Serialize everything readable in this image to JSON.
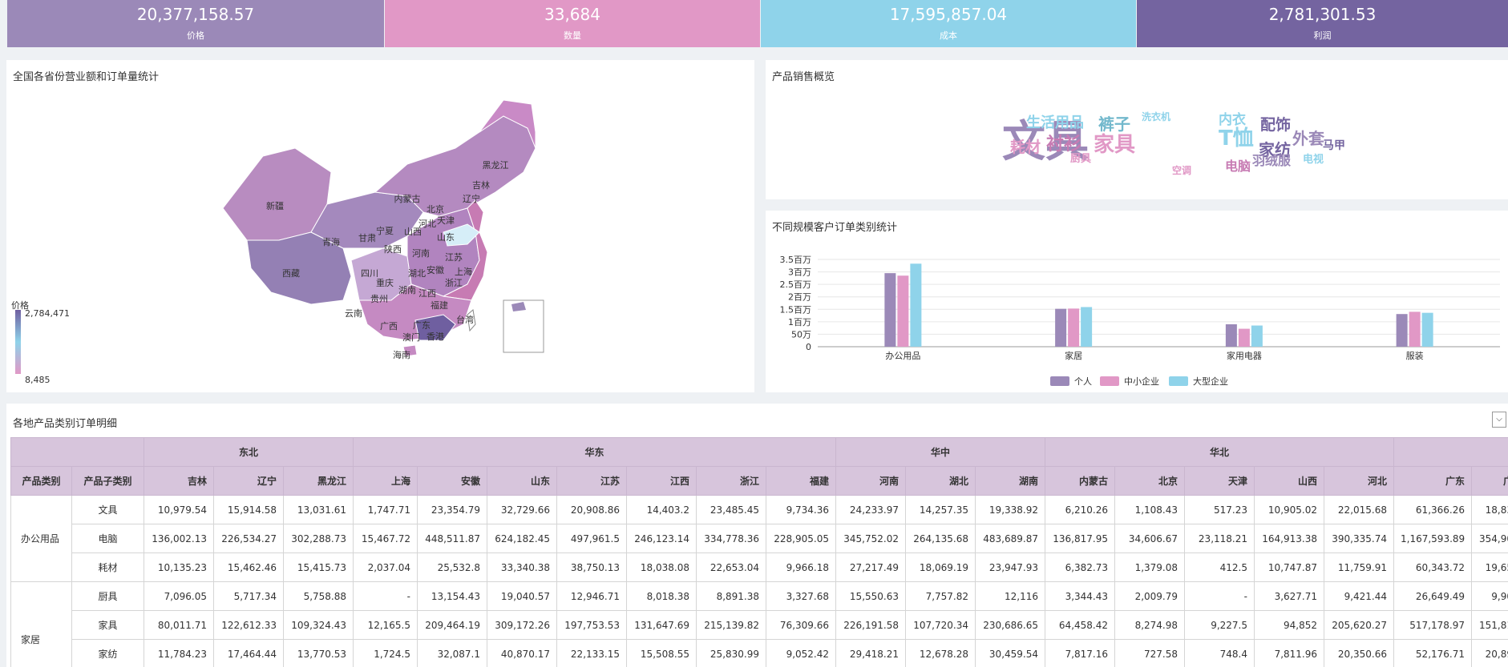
{
  "kpis": [
    {
      "value": "20,377,158.57",
      "label": "价格",
      "color": "#9b89b8"
    },
    {
      "value": "33,684",
      "label": "数量",
      "color": "#e198c6"
    },
    {
      "value": "17,595,857.04",
      "label": "成本",
      "color": "#8fd3ea"
    },
    {
      "value": "2,781,301.53",
      "label": "利润",
      "color": "#7464a0"
    }
  ],
  "map": {
    "title": "全国各省份营业额和订单量统计",
    "legend_title": "价格",
    "legend_max": "2,784,471",
    "legend_min": "8,485",
    "labels": [
      "黑龙江",
      "吉林",
      "辽宁",
      "内蒙古",
      "北京",
      "天津",
      "河北",
      "新疆",
      "青海",
      "甘肃",
      "宁夏",
      "山西",
      "山东",
      "陕西",
      "河南",
      "江苏",
      "西藏",
      "四川",
      "重庆",
      "湖北",
      "安徽",
      "上海",
      "浙江",
      "湖南",
      "江西",
      "贵州",
      "福建",
      "云南",
      "广西",
      "广东",
      "台湾",
      "香港",
      "澳门",
      "海南"
    ]
  },
  "wordcloud": {
    "title": "产品销售概览",
    "words": [
      {
        "text": "文具",
        "color": "#9b89b8"
      },
      {
        "text": "T恤",
        "color": "#8fd3ea"
      },
      {
        "text": "家具",
        "color": "#e198c6"
      },
      {
        "text": "家纺",
        "color": "#7464a0"
      },
      {
        "text": "衬衫",
        "color": "#c77bb3"
      },
      {
        "text": "裤子",
        "color": "#72b8cc"
      },
      {
        "text": "生活用品",
        "color": "#8fd3ea"
      },
      {
        "text": "耗材",
        "color": "#e198c6"
      },
      {
        "text": "配饰",
        "color": "#7464a0"
      },
      {
        "text": "外套",
        "color": "#9b89b8"
      },
      {
        "text": "内衣",
        "color": "#8fd3ea"
      },
      {
        "text": "羽绒服",
        "color": "#9b89b8"
      },
      {
        "text": "电脑",
        "color": "#c77bb3"
      },
      {
        "text": "马甲",
        "color": "#7464a0"
      },
      {
        "text": "电视",
        "color": "#8fd3ea"
      },
      {
        "text": "洗衣机",
        "color": "#8fd3ea"
      },
      {
        "text": "厨具",
        "color": "#e198c6"
      },
      {
        "text": "空调",
        "color": "#e198c6"
      }
    ]
  },
  "chart_data": {
    "type": "bar",
    "title": "不同规模客户订单类别统计",
    "categories": [
      "办公用品",
      "家居",
      "家用电器",
      "服装"
    ],
    "series": [
      {
        "name": "个人",
        "color": "#9b89b8",
        "values": [
          2950000,
          1520000,
          900000,
          1310000
        ]
      },
      {
        "name": "中小企业",
        "color": "#e198c6",
        "values": [
          2850000,
          1530000,
          720000,
          1400000
        ]
      },
      {
        "name": "大型企业",
        "color": "#8fd3ea",
        "values": [
          3330000,
          1590000,
          850000,
          1360000
        ]
      }
    ],
    "ylim": [
      0,
      3500000
    ],
    "ytick_labels": [
      "0",
      "50万",
      "1百万",
      "1.5百万",
      "2百万",
      "2.5百万",
      "3百万",
      "3.5百万"
    ],
    "legend_position": "bottom"
  },
  "table": {
    "title": "各地产品类别订单明细",
    "regions": [
      {
        "name": "东北",
        "span": 3
      },
      {
        "name": "华东",
        "span": 7
      },
      {
        "name": "华中",
        "span": 3
      },
      {
        "name": "华北",
        "span": 5
      },
      {
        "name": "",
        "span": 2
      }
    ],
    "col_headers": [
      "产品类别",
      "产品子类别"
    ],
    "provinces": [
      "吉林",
      "辽宁",
      "黑龙江",
      "上海",
      "安徽",
      "山东",
      "江苏",
      "江西",
      "浙江",
      "福建",
      "河南",
      "湖北",
      "湖南",
      "内蒙古",
      "北京",
      "天津",
      "山西",
      "河北",
      "广东",
      "广"
    ],
    "groups": [
      {
        "category": "办公用品",
        "rows": [
          {
            "sub": "文具",
            "values": [
              "10,979.54",
              "15,914.58",
              "13,031.61",
              "1,747.71",
              "23,354.79",
              "32,729.66",
              "20,908.86",
              "14,403.2",
              "23,485.45",
              "9,734.36",
              "24,233.97",
              "14,257.35",
              "19,338.92",
              "6,210.26",
              "1,108.43",
              "517.23",
              "10,905.02",
              "22,015.68",
              "61,366.26",
              "18,83"
            ]
          },
          {
            "sub": "电脑",
            "values": [
              "136,002.13",
              "226,534.27",
              "302,288.73",
              "15,467.72",
              "448,511.87",
              "624,182.45",
              "497,961.5",
              "246,123.14",
              "334,778.36",
              "228,905.05",
              "345,752.02",
              "264,135.68",
              "483,689.87",
              "136,817.95",
              "34,606.67",
              "23,118.21",
              "164,913.38",
              "390,335.74",
              "1,167,593.89",
              "354,90"
            ]
          },
          {
            "sub": "耗材",
            "values": [
              "10,135.23",
              "15,462.46",
              "15,415.73",
              "2,037.04",
              "25,532.8",
              "33,340.38",
              "38,750.13",
              "18,038.08",
              "22,653.04",
              "9,966.18",
              "27,217.49",
              "18,069.19",
              "23,947.93",
              "6,382.73",
              "1,379.08",
              "412.5",
              "10,747.87",
              "11,759.91",
              "60,343.72",
              "19,65"
            ]
          }
        ]
      },
      {
        "category": "家居",
        "rows": [
          {
            "sub": "厨具",
            "values": [
              "7,096.05",
              "5,717.34",
              "5,758.88",
              "-",
              "13,154.43",
              "19,040.57",
              "12,946.71",
              "8,018.38",
              "8,891.38",
              "3,327.68",
              "15,550.63",
              "7,757.82",
              "12,116",
              "3,344.43",
              "2,009.79",
              "-",
              "3,627.71",
              "9,421.44",
              "26,649.49",
              "9,90"
            ]
          },
          {
            "sub": "家具",
            "values": [
              "80,011.71",
              "122,612.33",
              "109,324.43",
              "12,165.5",
              "209,464.19",
              "309,172.26",
              "197,753.53",
              "131,647.69",
              "215,139.82",
              "76,309.66",
              "226,191.58",
              "107,720.34",
              "230,686.65",
              "64,458.42",
              "8,274.98",
              "9,227.5",
              "94,852",
              "205,620.27",
              "517,178.97",
              "151,81"
            ]
          },
          {
            "sub": "家纺",
            "values": [
              "11,784.23",
              "17,464.44",
              "13,770.53",
              "1,724.5",
              "32,087.1",
              "40,870.17",
              "22,133.15",
              "15,508.55",
              "25,830.99",
              "9,052.42",
              "29,418.21",
              "12,678.28",
              "30,459.54",
              "7,817.16",
              "727.58",
              "748.4",
              "7,811.96",
              "20,350.66",
              "52,176.71",
              "20,89"
            ]
          },
          {
            "sub": "",
            "values": [
              "",
              "",
              "",
              "",
              "",
              "",
              "",
              "",
              "",
              "",
              "",
              "",
              "",
              "",
              "",
              "",
              "",
              "",
              "",
              ""
            ]
          }
        ]
      }
    ]
  }
}
